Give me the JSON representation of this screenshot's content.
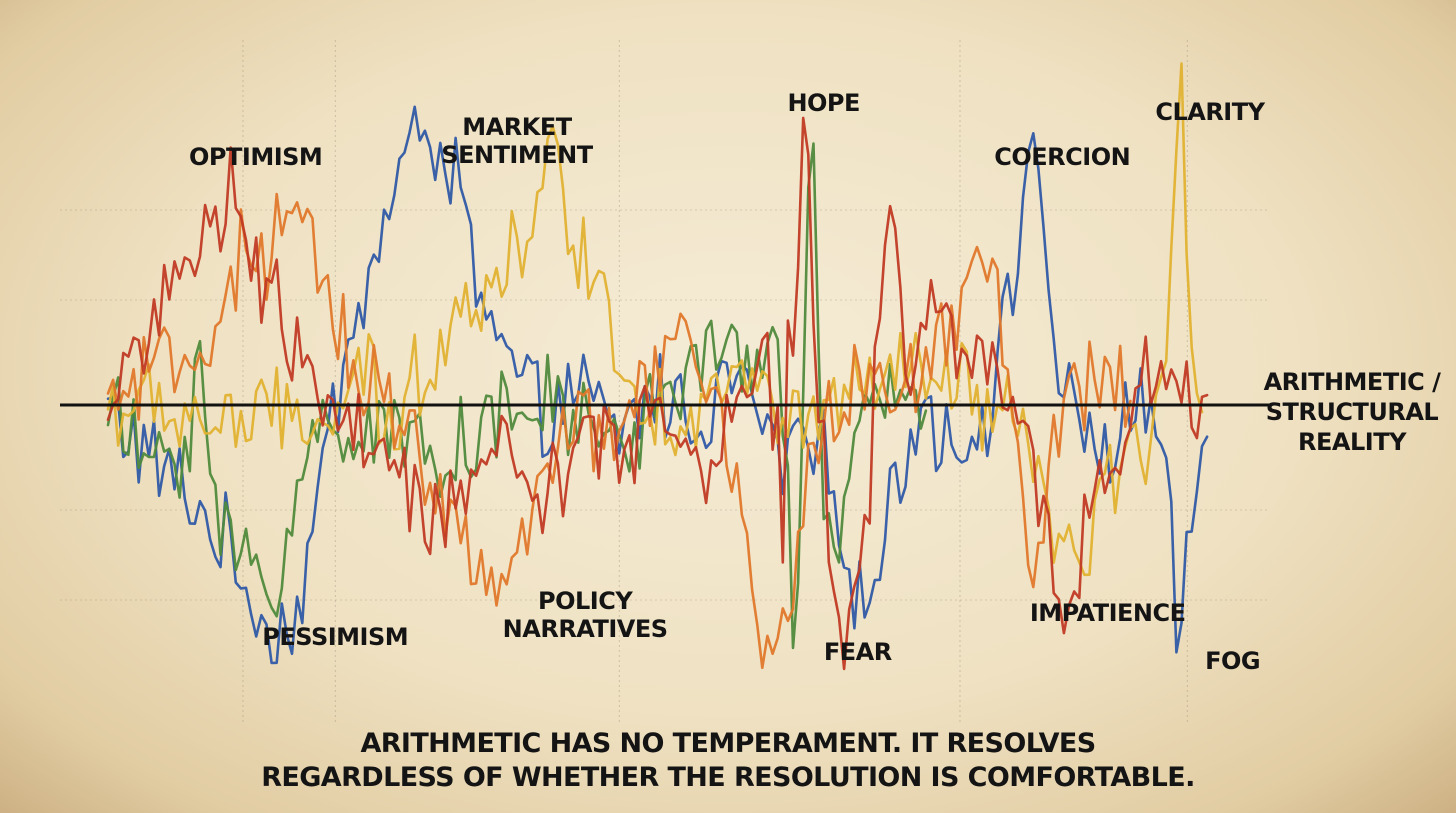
{
  "chart_data": {
    "type": "line",
    "baseline_label": [
      "ARITHMETIC /",
      "STRUCTURAL",
      "REALITY"
    ],
    "caption": [
      "ARITHMETIC HAS NO TEMPERAMENT. IT RESOLVES",
      "REGARDLESS OF WHETHER THE RESOLUTION IS COMFORTABLE."
    ],
    "grid": true,
    "x_range": [
      0,
      100
    ],
    "y_range": [
      -100,
      100
    ],
    "annotations": [
      {
        "id": "optimism",
        "lines": [
          "OPTIMISM"
        ],
        "x": 13,
        "y": 80
      },
      {
        "id": "market-sentiment",
        "lines": [
          "MARKET",
          "SENTIMENT"
        ],
        "x": 36,
        "y": 90
      },
      {
        "id": "hope",
        "lines": [
          "HOPE"
        ],
        "x": 63,
        "y": 98
      },
      {
        "id": "coercion",
        "lines": [
          "COERCION"
        ],
        "x": 84,
        "y": 80
      },
      {
        "id": "clarity",
        "lines": [
          "CLARITY"
        ],
        "x": 97,
        "y": 95
      },
      {
        "id": "pessimism",
        "lines": [
          "PESSIMISM"
        ],
        "x": 20,
        "y": -80
      },
      {
        "id": "policy-narratives",
        "lines": [
          "POLICY",
          "NARRATIVES"
        ],
        "x": 42,
        "y": -68
      },
      {
        "id": "fear",
        "lines": [
          "FEAR"
        ],
        "x": 66,
        "y": -85
      },
      {
        "id": "impatience",
        "lines": [
          "IMPATIENCE"
        ],
        "x": 88,
        "y": -72
      },
      {
        "id": "fog",
        "lines": [
          "FOG"
        ],
        "x": 99,
        "y": -88
      }
    ],
    "series": [
      {
        "color": "#2f5aa6",
        "keys": [
          [
            0,
            0
          ],
          [
            3,
            -15
          ],
          [
            7,
            -30
          ],
          [
            10,
            -45
          ],
          [
            12,
            -60
          ],
          [
            15,
            -78
          ],
          [
            17,
            -65
          ],
          [
            19,
            -20
          ],
          [
            21,
            20
          ],
          [
            24,
            55
          ],
          [
            26,
            80
          ],
          [
            28,
            95
          ],
          [
            31,
            70
          ],
          [
            33,
            30
          ],
          [
            35,
            15
          ],
          [
            38,
            -5
          ],
          [
            41,
            5
          ],
          [
            45,
            -10
          ],
          [
            48,
            5
          ],
          [
            52,
            -5
          ],
          [
            55,
            10
          ],
          [
            57,
            0
          ],
          [
            59,
            -20
          ],
          [
            61,
            -10
          ],
          [
            63,
            -20
          ],
          [
            65,
            -40
          ],
          [
            66,
            -70
          ],
          [
            67,
            -65
          ],
          [
            68,
            -50
          ],
          [
            70,
            -15
          ],
          [
            72,
            0
          ],
          [
            75,
            -15
          ],
          [
            78,
            5
          ],
          [
            80,
            45
          ],
          [
            81,
            90
          ],
          [
            82,
            80
          ],
          [
            83,
            30
          ],
          [
            84,
            0
          ],
          [
            86,
            -10
          ],
          [
            88,
            -15
          ],
          [
            91,
            0
          ],
          [
            92,
            -5
          ],
          [
            93,
            -20
          ],
          [
            94,
            -72
          ],
          [
            94.5,
            -85
          ],
          [
            95,
            -40
          ],
          [
            96,
            -30
          ],
          [
            96.5,
            -10
          ],
          [
            97,
            0
          ]
        ]
      },
      {
        "color": "#4f8a3c",
        "keys": [
          [
            0,
            0
          ],
          [
            3,
            -20
          ],
          [
            6,
            -10
          ],
          [
            7,
            -20
          ],
          [
            8,
            25
          ],
          [
            9,
            -25
          ],
          [
            10,
            -45
          ],
          [
            12,
            -50
          ],
          [
            14,
            -60
          ],
          [
            15,
            -62
          ],
          [
            16,
            -40
          ],
          [
            18,
            -10
          ],
          [
            20,
            -5
          ],
          [
            25,
            -10
          ],
          [
            30,
            -15
          ],
          [
            35,
            -5
          ],
          [
            40,
            0
          ],
          [
            45,
            -15
          ],
          [
            50,
            10
          ],
          [
            55,
            15
          ],
          [
            58,
            20
          ],
          [
            59,
            10
          ],
          [
            60,
            -40
          ],
          [
            60.5,
            -100
          ],
          [
            61,
            -20
          ],
          [
            61.5,
            80
          ],
          [
            62,
            100
          ],
          [
            62.5,
            10
          ],
          [
            63,
            -30
          ],
          [
            64,
            -55
          ],
          [
            65,
            -35
          ],
          [
            66,
            -10
          ],
          [
            68,
            0
          ],
          [
            70,
            5
          ],
          [
            72,
            0
          ]
        ]
      },
      {
        "color": "#e0b231",
        "keys": [
          [
            0,
            0
          ],
          [
            10,
            -5
          ],
          [
            20,
            -5
          ],
          [
            23,
            10
          ],
          [
            25,
            -15
          ],
          [
            27,
            10
          ],
          [
            29,
            20
          ],
          [
            31,
            40
          ],
          [
            33,
            30
          ],
          [
            35,
            50
          ],
          [
            37,
            60
          ],
          [
            39,
            80
          ],
          [
            41,
            60
          ],
          [
            43,
            40
          ],
          [
            45,
            20
          ],
          [
            47,
            0
          ],
          [
            50,
            -5
          ],
          [
            55,
            10
          ],
          [
            60,
            -5
          ],
          [
            65,
            0
          ],
          [
            70,
            10
          ],
          [
            75,
            5
          ],
          [
            80,
            -10
          ],
          [
            82,
            -30
          ],
          [
            84,
            -45
          ],
          [
            86,
            -60
          ],
          [
            88,
            -25
          ],
          [
            90,
            -20
          ],
          [
            92,
            -5
          ],
          [
            93,
            5
          ],
          [
            93.5,
            35
          ],
          [
            94,
            75
          ],
          [
            94.5,
            98
          ],
          [
            95,
            60
          ],
          [
            95.5,
            20
          ],
          [
            96,
            5
          ],
          [
            96.5,
            0
          ]
        ]
      },
      {
        "color": "#e0782b",
        "keys": [
          [
            0,
            0
          ],
          [
            5,
            10
          ],
          [
            8,
            20
          ],
          [
            10,
            30
          ],
          [
            12,
            50
          ],
          [
            14,
            40
          ],
          [
            15,
            55
          ],
          [
            17,
            60
          ],
          [
            19,
            40
          ],
          [
            20,
            30
          ],
          [
            22,
            10
          ],
          [
            24,
            5
          ],
          [
            26,
            0
          ],
          [
            28,
            -20
          ],
          [
            30,
            -40
          ],
          [
            32,
            -55
          ],
          [
            34,
            -60
          ],
          [
            36,
            -50
          ],
          [
            38,
            -30
          ],
          [
            40,
            -15
          ],
          [
            42,
            -5
          ],
          [
            45,
            -10
          ],
          [
            48,
            10
          ],
          [
            50,
            25
          ],
          [
            52,
            10
          ],
          [
            54,
            -10
          ],
          [
            56,
            -40
          ],
          [
            57,
            -75
          ],
          [
            58,
            -80
          ],
          [
            60,
            -60
          ],
          [
            62,
            -20
          ],
          [
            64,
            0
          ],
          [
            66,
            10
          ],
          [
            68,
            5
          ],
          [
            70,
            0
          ],
          [
            72,
            15
          ],
          [
            74,
            20
          ],
          [
            76,
            40
          ],
          [
            77,
            65
          ],
          [
            78,
            50
          ],
          [
            79,
            20
          ],
          [
            80,
            -20
          ],
          [
            81,
            -55
          ],
          [
            82,
            -45
          ],
          [
            83,
            -10
          ],
          [
            85,
            0
          ],
          [
            88,
            10
          ],
          [
            90,
            0
          ]
        ]
      },
      {
        "color": "#c03a24",
        "keys": [
          [
            0,
            0
          ],
          [
            3,
            25
          ],
          [
            5,
            35
          ],
          [
            7,
            40
          ],
          [
            8,
            55
          ],
          [
            10,
            50
          ],
          [
            11,
            85
          ],
          [
            12,
            60
          ],
          [
            13,
            40
          ],
          [
            15,
            30
          ],
          [
            18,
            10
          ],
          [
            20,
            -5
          ],
          [
            22,
            -10
          ],
          [
            24,
            -20
          ],
          [
            26,
            -30
          ],
          [
            28,
            -40
          ],
          [
            30,
            -35
          ],
          [
            32,
            -20
          ],
          [
            34,
            -10
          ],
          [
            36,
            -25
          ],
          [
            38,
            -30
          ],
          [
            40,
            -25
          ],
          [
            42,
            -10
          ],
          [
            44,
            -15
          ],
          [
            46,
            -10
          ],
          [
            48,
            0
          ],
          [
            50,
            -5
          ],
          [
            52,
            -20
          ],
          [
            54,
            -10
          ],
          [
            56,
            0
          ],
          [
            58,
            15
          ],
          [
            59,
            -10
          ],
          [
            59.5,
            -60
          ],
          [
            60,
            70
          ],
          [
            60.5,
            -20
          ],
          [
            61,
            90
          ],
          [
            61.5,
            100
          ],
          [
            62,
            40
          ],
          [
            63,
            -20
          ],
          [
            64,
            -60
          ],
          [
            65,
            -85
          ],
          [
            66,
            -60
          ],
          [
            67,
            -30
          ],
          [
            68,
            40
          ],
          [
            69,
            80
          ],
          [
            70,
            20
          ],
          [
            71,
            10
          ],
          [
            73,
            40
          ],
          [
            75,
            20
          ],
          [
            78,
            10
          ],
          [
            80,
            0
          ],
          [
            82,
            -30
          ],
          [
            84,
            -60
          ],
          [
            85,
            -75
          ],
          [
            86,
            -40
          ],
          [
            88,
            -20
          ],
          [
            90,
            -10
          ],
          [
            92,
            20
          ],
          [
            94,
            10
          ],
          [
            95,
            5
          ],
          [
            97,
            0
          ]
        ]
      }
    ]
  }
}
